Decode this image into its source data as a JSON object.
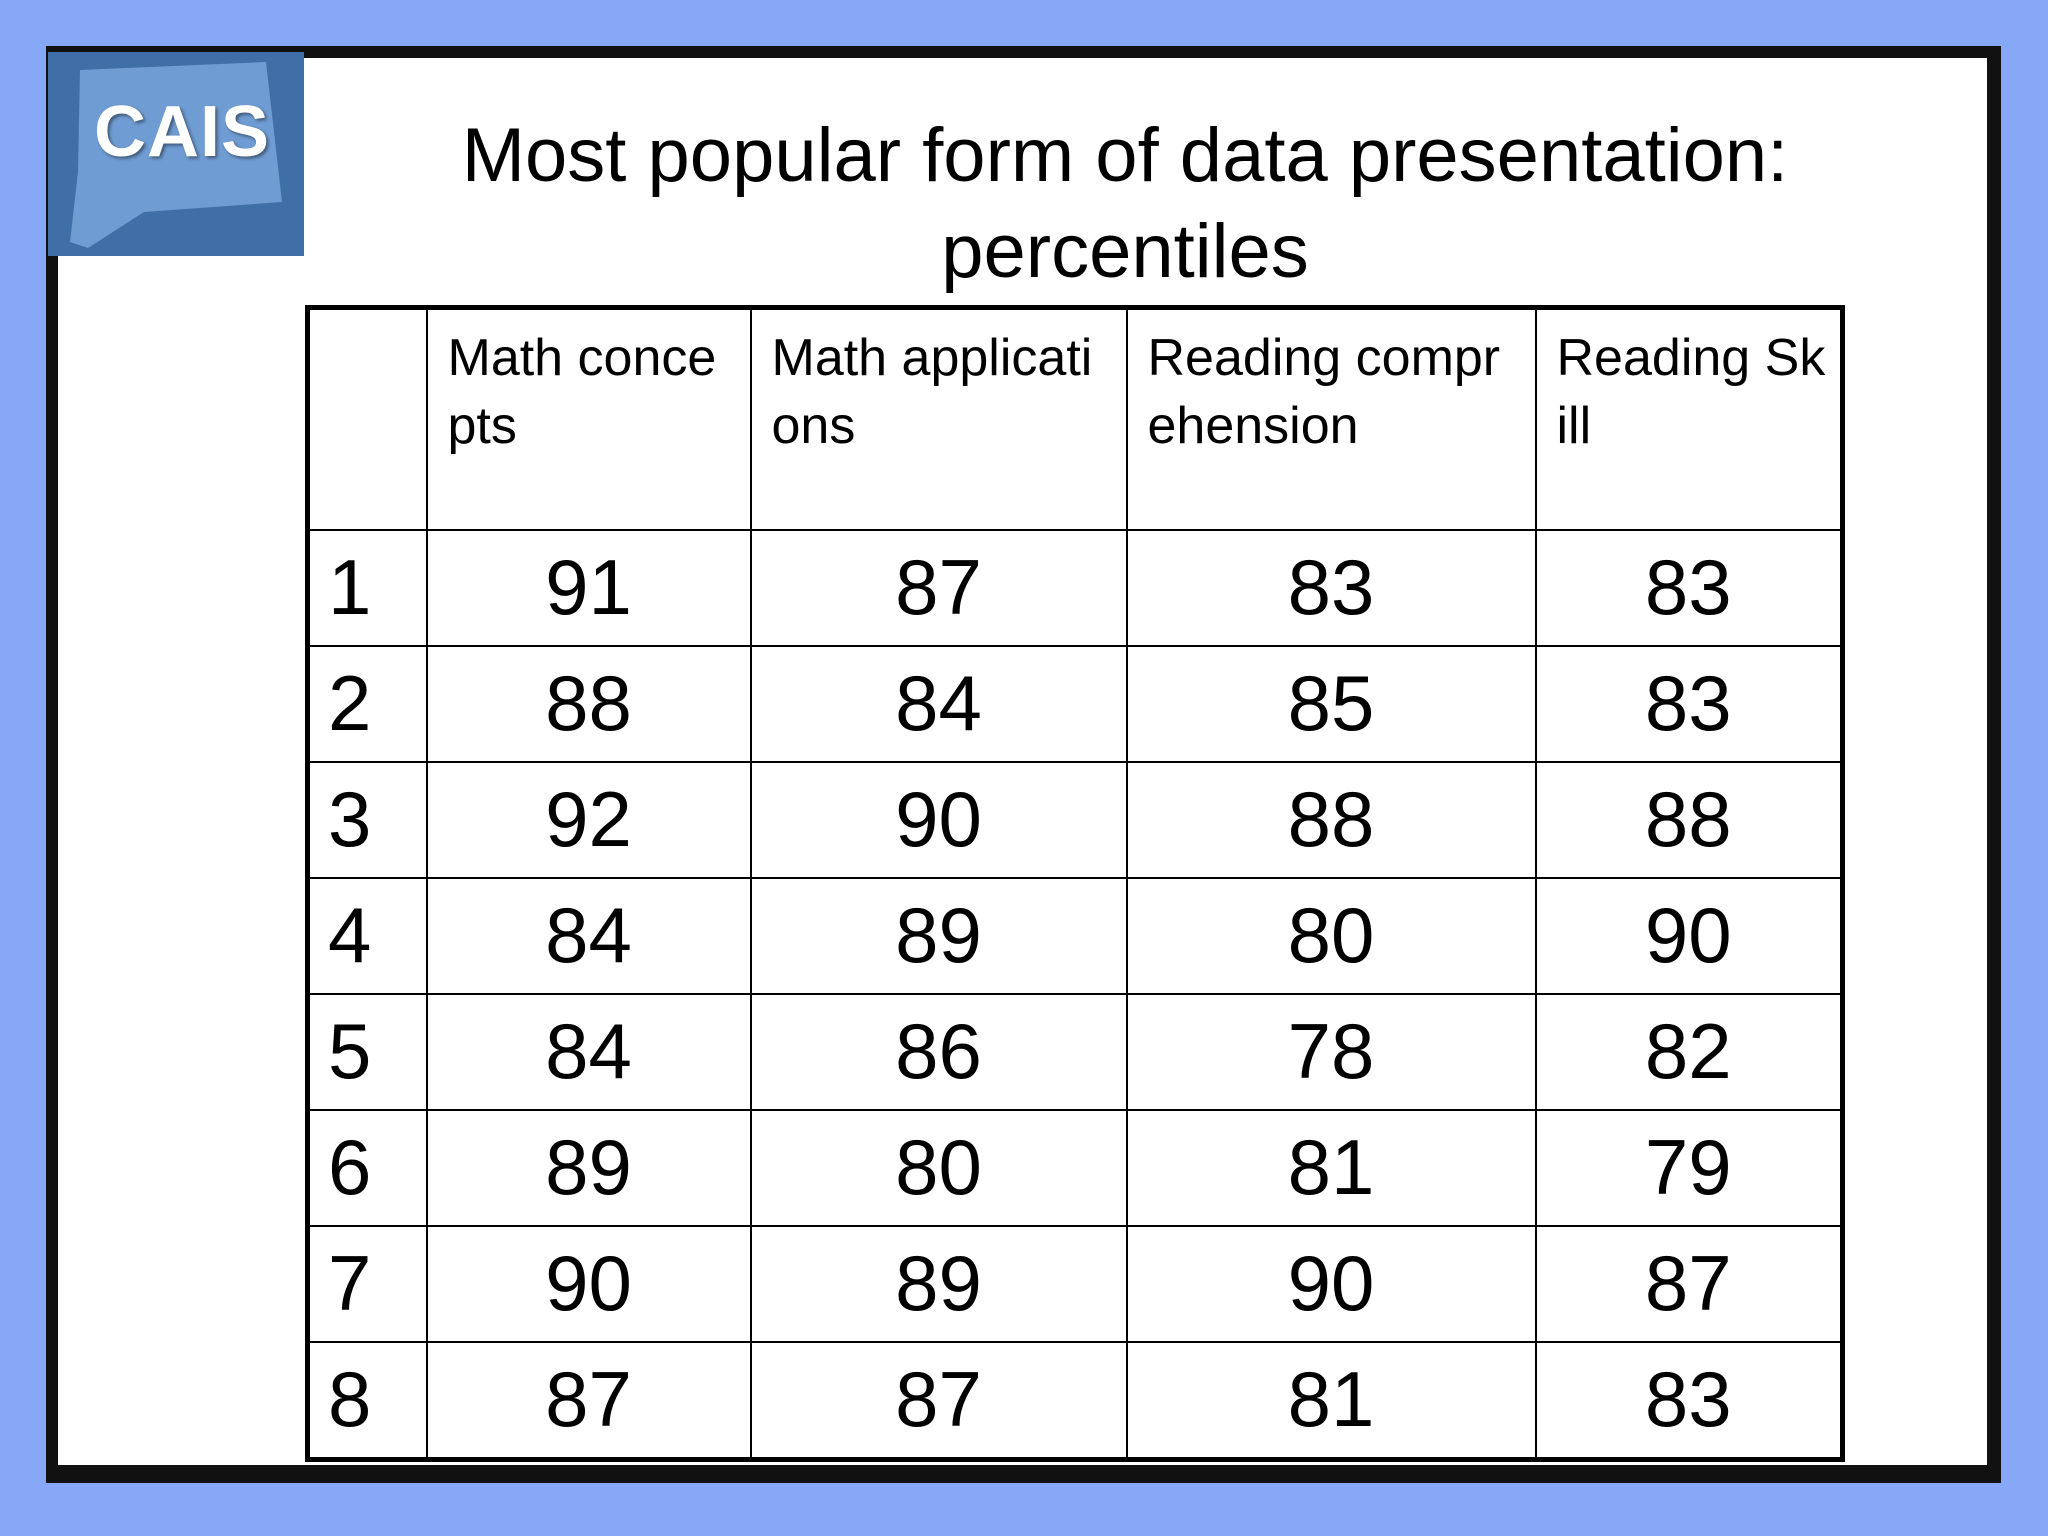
{
  "logo": {
    "text": "CAIS"
  },
  "title": {
    "line1": "Most popular form of data presentation:",
    "line2": "percentiles"
  },
  "table": {
    "columns": [
      "",
      "Math concepts",
      "Math applications",
      "Reading comprehension",
      "Reading Skill"
    ],
    "rows": [
      [
        "1",
        "91",
        "87",
        "83",
        "83"
      ],
      [
        "2",
        "88",
        "84",
        "85",
        "83"
      ],
      [
        "3",
        "92",
        "90",
        "88",
        "88"
      ],
      [
        "4",
        "84",
        "89",
        "80",
        "90"
      ],
      [
        "5",
        "84",
        "86",
        "78",
        "82"
      ],
      [
        "6",
        "89",
        "80",
        "81",
        "79"
      ],
      [
        "7",
        "90",
        "89",
        "90",
        "87"
      ],
      [
        "8",
        "87",
        "87",
        "81",
        "83"
      ]
    ]
  }
}
